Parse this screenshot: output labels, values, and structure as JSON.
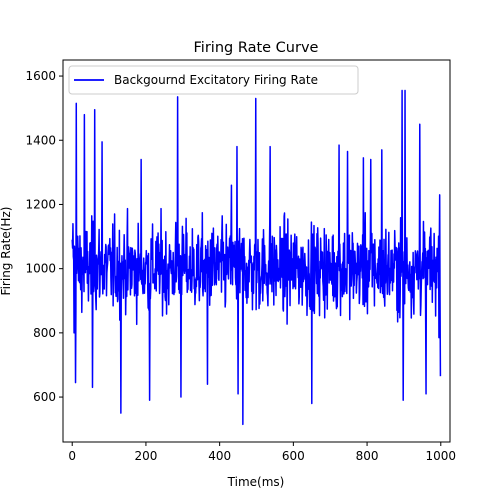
{
  "chart_data": {
    "type": "line",
    "title": "Firing Rate Curve",
    "xlabel": "Time(ms)",
    "ylabel": "Firing Rate(Hz)",
    "xlim": [
      -25,
      1025
    ],
    "ylim": [
      460,
      1650
    ],
    "x_ticks": [
      0,
      200,
      400,
      600,
      800,
      1000
    ],
    "y_ticks": [
      600,
      800,
      1000,
      1200,
      1400,
      1600
    ],
    "grid": false,
    "legend_position": "top-left",
    "series": [
      {
        "name": "Backgournd Excitatory Firing Rate",
        "color": "#0000ff",
        "sample_count": 1000,
        "x_start": 0,
        "x_step": 1,
        "mean": 1000,
        "typical_spread": [
          800,
          1200
        ],
        "extremes": [
          {
            "x": 2,
            "y": 1140
          },
          {
            "x": 5,
            "y": 800
          },
          {
            "x": 9,
            "y": 645
          },
          {
            "x": 11,
            "y": 1515
          },
          {
            "x": 33,
            "y": 1480
          },
          {
            "x": 55,
            "y": 630
          },
          {
            "x": 61,
            "y": 1495
          },
          {
            "x": 81,
            "y": 1395
          },
          {
            "x": 132,
            "y": 550
          },
          {
            "x": 187,
            "y": 1340
          },
          {
            "x": 210,
            "y": 590
          },
          {
            "x": 286,
            "y": 1535
          },
          {
            "x": 295,
            "y": 600
          },
          {
            "x": 367,
            "y": 640
          },
          {
            "x": 432,
            "y": 1260
          },
          {
            "x": 447,
            "y": 1380
          },
          {
            "x": 450,
            "y": 610
          },
          {
            "x": 463,
            "y": 515
          },
          {
            "x": 498,
            "y": 1530
          },
          {
            "x": 537,
            "y": 1380
          },
          {
            "x": 650,
            "y": 580
          },
          {
            "x": 724,
            "y": 1385
          },
          {
            "x": 747,
            "y": 1365
          },
          {
            "x": 790,
            "y": 1345
          },
          {
            "x": 810,
            "y": 1340
          },
          {
            "x": 840,
            "y": 1370
          },
          {
            "x": 895,
            "y": 1555
          },
          {
            "x": 903,
            "y": 1555
          },
          {
            "x": 898,
            "y": 590
          },
          {
            "x": 943,
            "y": 1450
          },
          {
            "x": 960,
            "y": 610
          },
          {
            "x": 997,
            "y": 1230
          },
          {
            "x": 999,
            "y": 665
          }
        ]
      }
    ]
  }
}
